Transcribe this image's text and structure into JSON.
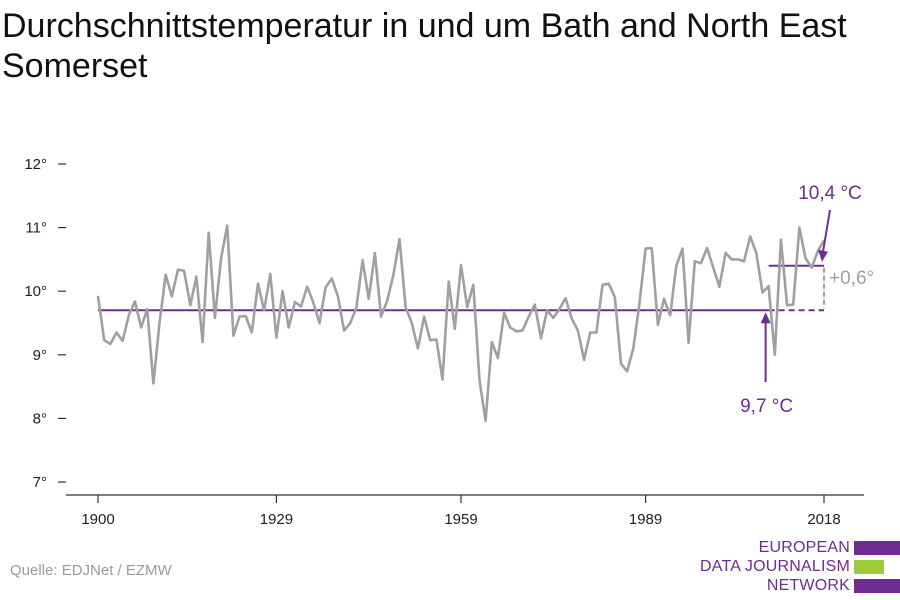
{
  "title": "Durchschnittstemperatur in und um Bath and North East Somerset",
  "source": "Quelle: EDJNet / EZMW",
  "logo": {
    "lines": [
      "EUROPEAN",
      "DATA JOURNALISM",
      "NETWORK"
    ],
    "colors": [
      "#6f2c91",
      "#9ccc3c",
      "#6f2c91"
    ]
  },
  "colors": {
    "series": "#a0a0a0",
    "accent": "#6f2c91",
    "axis": "#333333",
    "text": "#222222"
  },
  "chart_data": {
    "type": "line",
    "title": "Durchschnittstemperatur in und um Bath and North East Somerset",
    "xlabel": "",
    "ylabel": "",
    "ylim": [
      7,
      12
    ],
    "xlim": [
      1898,
      2021
    ],
    "xticks": [
      1900,
      1929,
      1959,
      1989,
      2018
    ],
    "xtick_labels": [
      "1900",
      "1929",
      "1959",
      "1989",
      "2018"
    ],
    "yticks": [
      7,
      8,
      9,
      10,
      11,
      12
    ],
    "ytick_labels": [
      "7°",
      "8°",
      "9°",
      "10°",
      "11°",
      "12°"
    ],
    "grid": false,
    "series": [
      {
        "x_start": 1900,
        "values": [
          9.92,
          9.23,
          9.17,
          9.35,
          9.22,
          9.62,
          9.84,
          9.43,
          9.72,
          8.55,
          9.5,
          10.26,
          9.92,
          10.34,
          10.32,
          9.78,
          10.23,
          9.2,
          10.92,
          9.58,
          10.52,
          11.03,
          9.3,
          9.6,
          9.61,
          9.35,
          10.12,
          9.7,
          10.27,
          9.27,
          10.0,
          9.43,
          9.83,
          9.76,
          10.07,
          9.82,
          9.5,
          10.06,
          10.2,
          9.92,
          9.38,
          9.5,
          9.74,
          10.49,
          9.88,
          10.6,
          9.6,
          9.85,
          10.25,
          10.82,
          9.75,
          9.5,
          9.1,
          9.6,
          9.23,
          9.24,
          8.61,
          10.15,
          9.41,
          10.41,
          9.75,
          10.1,
          8.6,
          7.96,
          9.2,
          8.95,
          9.66,
          9.43,
          9.37,
          9.38,
          9.6,
          9.79,
          9.26,
          9.7,
          9.58,
          9.72,
          9.89,
          9.57,
          9.38,
          8.92,
          9.35,
          9.35,
          10.1,
          10.12,
          9.91,
          8.86,
          8.74,
          9.1,
          9.8,
          10.67,
          10.68,
          9.47,
          9.88,
          9.62,
          10.4,
          10.67,
          9.19,
          10.47,
          10.44,
          10.68,
          10.37,
          10.07,
          10.6,
          10.5,
          10.5,
          10.47,
          10.86,
          10.6,
          9.98,
          10.08,
          9.0,
          10.81,
          9.78,
          9.79,
          11.0,
          10.52,
          10.37,
          10.63,
          10.8
        ]
      }
    ],
    "annotations": {
      "baseline_value": 9.7,
      "baseline_start": 1900,
      "baseline_end": 2018,
      "baseline_label": "9,7 °C",
      "recent_value": 10.4,
      "recent_start": 2009,
      "recent_end": 2018,
      "recent_label": "10,4 °C",
      "diff_label": "+0,6°"
    }
  }
}
